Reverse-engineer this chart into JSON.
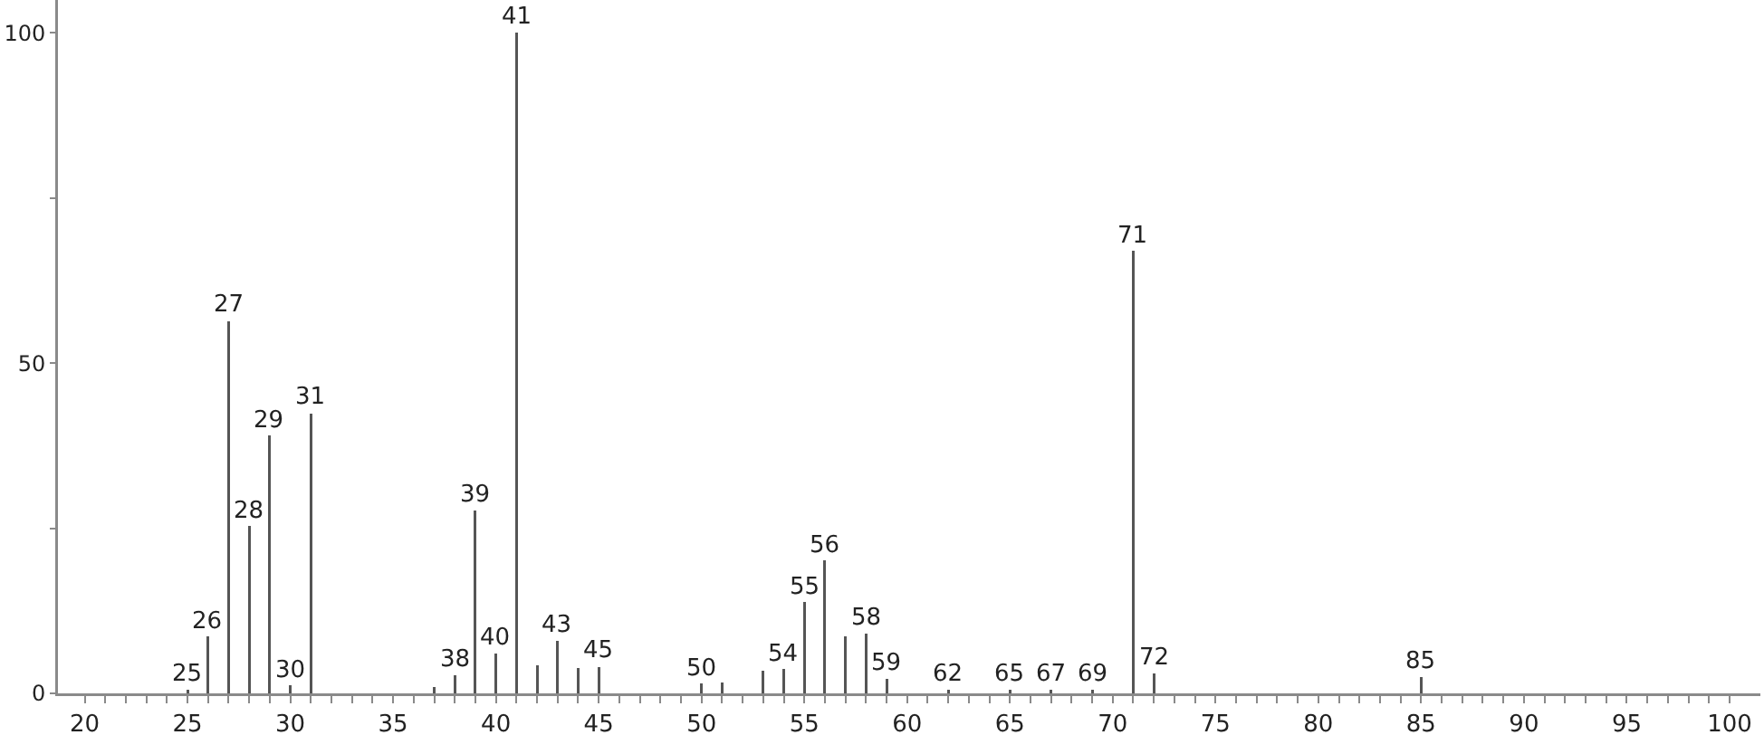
{
  "chart_data": {
    "type": "bar",
    "x": [
      25,
      26,
      27,
      28,
      29,
      30,
      31,
      37,
      38,
      39,
      40,
      41,
      42,
      43,
      44,
      45,
      50,
      51,
      53,
      54,
      55,
      56,
      57,
      58,
      59,
      62,
      65,
      67,
      69,
      71,
      72,
      85
    ],
    "values": [
      0.5,
      8.6,
      56.4,
      25.3,
      39.0,
      1.2,
      42.4,
      1.0,
      2.8,
      27.7,
      6.1,
      100,
      4.3,
      7.9,
      3.8,
      4.0,
      1.5,
      1.6,
      3.4,
      3.7,
      13.8,
      20.1,
      8.6,
      9.1,
      2.2,
      0.5,
      0.5,
      0.5,
      0.5,
      67,
      3.0,
      2.5
    ],
    "annotations": [
      {
        "text": "25",
        "x": 25,
        "y": 0.5
      },
      {
        "text": "26",
        "x": 26,
        "y": 8.6
      },
      {
        "text": "27",
        "x": 27,
        "y": 56.4
      },
      {
        "text": "28",
        "x": 28,
        "y": 25.3
      },
      {
        "text": "29",
        "x": 29,
        "y": 39.0
      },
      {
        "text": "30",
        "x": 30,
        "y": 1.2
      },
      {
        "text": "31",
        "x": 31,
        "y": 42.4
      },
      {
        "text": "38",
        "x": 38,
        "y": 2.8
      },
      {
        "text": "39",
        "x": 39,
        "y": 27.7
      },
      {
        "text": "40",
        "x": 40,
        "y": 6.1
      },
      {
        "text": "41",
        "x": 41,
        "y": 100
      },
      {
        "text": "43",
        "x": 43,
        "y": 7.9
      },
      {
        "text": "45",
        "x": 45,
        "y": 4.0
      },
      {
        "text": "50",
        "x": 50,
        "y": 1.5
      },
      {
        "text": "54",
        "x": 54,
        "y": 3.7
      },
      {
        "text": "55",
        "x": 55,
        "y": 13.8
      },
      {
        "text": "56",
        "x": 56,
        "y": 20.1
      },
      {
        "text": "58",
        "x": 58,
        "y": 9.1
      },
      {
        "text": "59",
        "x": 59,
        "y": 2.2
      },
      {
        "text": "62",
        "x": 62,
        "y": 0.5
      },
      {
        "text": "65",
        "x": 65,
        "y": 0.5
      },
      {
        "text": "67",
        "x": 67,
        "y": 0.5
      },
      {
        "text": "69",
        "x": 69,
        "y": 0.5
      },
      {
        "text": "71",
        "x": 71,
        "y": 67
      },
      {
        "text": "72",
        "x": 72,
        "y": 3.0
      },
      {
        "text": "85",
        "x": 85,
        "y": 2.5
      }
    ],
    "color": "#555555",
    "xlim": [
      18.7,
      101.5
    ],
    "xticks": [
      20,
      {
        "value": 21,
        "label": null
      },
      {
        "value": 22,
        "label": null
      },
      {
        "value": 23,
        "label": null
      },
      {
        "value": 24,
        "label": null
      },
      25,
      {
        "value": 26,
        "label": null
      },
      {
        "value": 27,
        "label": null
      },
      {
        "value": 28,
        "label": null
      },
      {
        "value": 29,
        "label": null
      },
      30,
      {
        "value": 31,
        "label": null
      },
      {
        "value": 32,
        "label": null
      },
      {
        "value": 33,
        "label": null
      },
      {
        "value": 34,
        "label": null
      },
      35,
      {
        "value": 36,
        "label": null
      },
      {
        "value": 37,
        "label": null
      },
      {
        "value": 38,
        "label": null
      },
      {
        "value": 39,
        "label": null
      },
      40,
      {
        "value": 41,
        "label": null
      },
      {
        "value": 42,
        "label": null
      },
      {
        "value": 43,
        "label": null
      },
      {
        "value": 44,
        "label": null
      },
      45,
      {
        "value": 46,
        "label": null
      },
      {
        "value": 47,
        "label": null
      },
      {
        "value": 48,
        "label": null
      },
      {
        "value": 49,
        "label": null
      },
      50,
      {
        "value": 51,
        "label": null
      },
      {
        "value": 52,
        "label": null
      },
      {
        "value": 53,
        "label": null
      },
      {
        "value": 54,
        "label": null
      },
      55,
      {
        "value": 56,
        "label": null
      },
      {
        "value": 57,
        "label": null
      },
      {
        "value": 58,
        "label": null
      },
      {
        "value": 59,
        "label": null
      },
      60,
      {
        "value": 61,
        "label": null
      },
      {
        "value": 62,
        "label": null
      },
      {
        "value": 63,
        "label": null
      },
      {
        "value": 64,
        "label": null
      },
      65,
      {
        "value": 66,
        "label": null
      },
      {
        "value": 67,
        "label": null
      },
      {
        "value": 68,
        "label": null
      },
      {
        "value": 69,
        "label": null
      },
      70,
      {
        "value": 71,
        "label": null
      },
      {
        "value": 72,
        "label": null
      },
      {
        "value": 73,
        "label": null
      },
      {
        "value": 74,
        "label": null
      },
      75,
      {
        "value": 76,
        "label": null
      },
      {
        "value": 77,
        "label": null
      },
      {
        "value": 78,
        "label": null
      },
      {
        "value": 79,
        "label": null
      },
      80,
      {
        "value": 81,
        "label": null
      },
      {
        "value": 82,
        "label": null
      },
      {
        "value": 83,
        "label": null
      },
      {
        "value": 84,
        "label": null
      },
      85,
      {
        "value": 86,
        "label": null
      },
      {
        "value": 87,
        "label": null
      },
      {
        "value": 88,
        "label": null
      },
      {
        "value": 89,
        "label": null
      },
      90,
      {
        "value": 91,
        "label": null
      },
      {
        "value": 92,
        "label": null
      },
      {
        "value": 93,
        "label": null
      },
      {
        "value": 94,
        "label": null
      },
      95,
      {
        "value": 96,
        "label": null
      },
      {
        "value": 97,
        "label": null
      },
      {
        "value": 98,
        "label": null
      },
      {
        "value": 99,
        "label": null
      },
      100
    ],
    "ylim": [
      0,
      105
    ],
    "yticks": [
      0,
      {
        "value": 25,
        "label": null
      },
      50,
      {
        "value": 75,
        "label": null
      },
      100
    ]
  }
}
